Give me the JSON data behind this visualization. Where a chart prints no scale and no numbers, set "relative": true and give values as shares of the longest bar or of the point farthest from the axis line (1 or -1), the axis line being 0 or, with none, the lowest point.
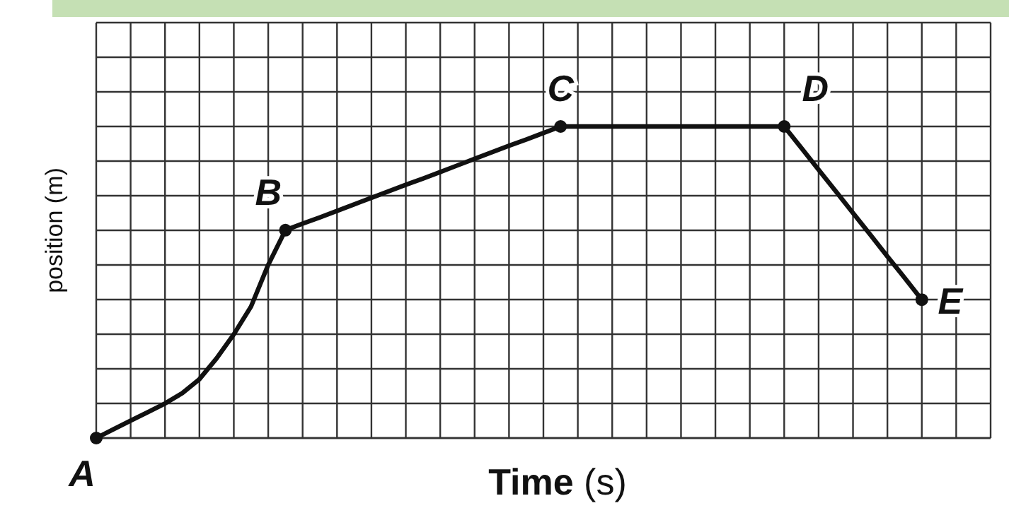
{
  "chart_data": {
    "type": "line",
    "relative": true,
    "xlabel": "Time (s)",
    "ylabel": "position (m)",
    "grid": true,
    "categories": [
      null,
      null,
      null,
      null,
      null,
      null,
      null,
      null,
      null,
      null,
      null,
      null,
      null,
      null,
      null,
      null,
      null,
      null,
      null,
      null,
      null,
      null,
      null,
      null,
      null,
      null,
      null,
      null,
      null,
      null,
      null,
      null,
      null,
      null,
      null,
      null,
      null,
      null,
      null,
      null,
      null,
      null,
      null,
      null,
      null,
      null,
      null,
      null,
      null
    ],
    "series": [
      {
        "color": "#111111",
        "values": [
          0,
          0.028,
          0.056,
          0.083,
          0.111,
          0.144,
          0.189,
          0.256,
          0.333,
          0.422,
          0.556,
          0.667,
          0.688,
          0.708,
          0.729,
          0.75,
          0.771,
          0.792,
          0.813,
          0.833,
          0.854,
          0.875,
          0.896,
          0.917,
          0.938,
          0.958,
          0.979,
          1,
          1,
          1,
          1,
          1,
          1,
          1,
          1,
          1,
          1,
          1,
          1,
          1,
          1,
          0.931,
          0.861,
          0.792,
          0.722,
          0.653,
          0.583,
          0.514,
          0.444
        ]
      }
    ],
    "annotations": [
      "A",
      "B",
      "C",
      "D",
      "E"
    ]
  }
}
